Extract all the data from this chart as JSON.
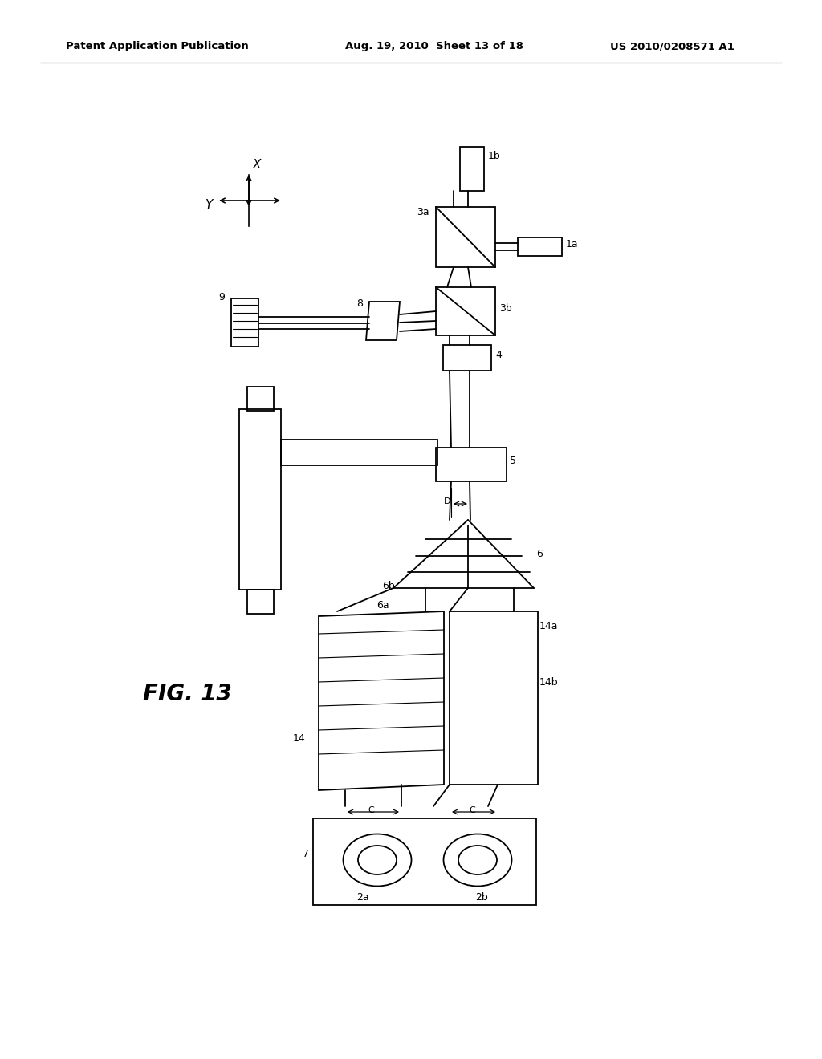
{
  "bg_color": "#ffffff",
  "line_color": "#000000",
  "header_left": "Patent Application Publication",
  "header_mid": "Aug. 19, 2010  Sheet 13 of 18",
  "header_right": "US 2010/0208571 A1",
  "fig_label": "FIG. 13"
}
